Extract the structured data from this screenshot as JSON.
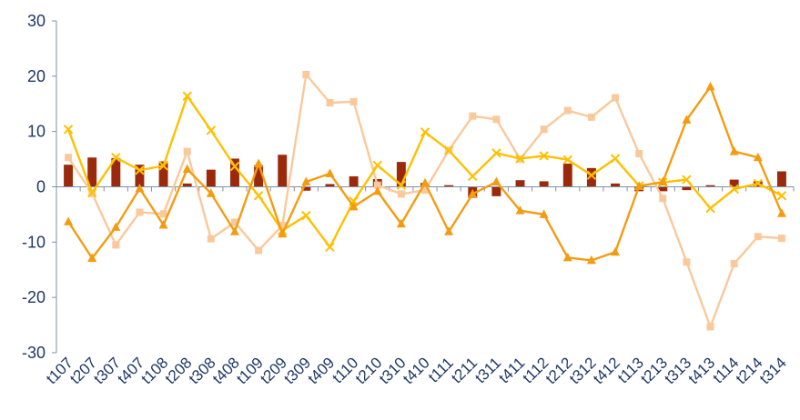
{
  "chart_data": {
    "type": "bar+line",
    "categories": [
      "t107",
      "t207",
      "t307",
      "t407",
      "t108",
      "t208",
      "t308",
      "t408",
      "t109",
      "t209",
      "t309",
      "t409",
      "t110",
      "t210",
      "t310",
      "t410",
      "t111",
      "t211",
      "t311",
      "t411",
      "t112",
      "t212",
      "t312",
      "t412",
      "t113",
      "t213",
      "t313",
      "t413",
      "t114",
      "t214",
      "t314"
    ],
    "ylim": [
      -30,
      30
    ],
    "yticks": [
      -30,
      -20,
      -10,
      0,
      10,
      20,
      30
    ],
    "grid": false,
    "legend": "none",
    "series": [
      {
        "type": "bar",
        "color": "#9b2a0c",
        "values": [
          4.0,
          5.3,
          5.2,
          4.0,
          4.6,
          0.6,
          3.1,
          5.1,
          3.9,
          5.8,
          -0.7,
          0.5,
          1.9,
          1.4,
          4.5,
          0.7,
          0.3,
          -2.0,
          -1.7,
          1.2,
          1.0,
          4.2,
          3.4,
          0.6,
          -0.8,
          -0.8,
          -0.6,
          0.3,
          1.3,
          1.0,
          2.8
        ]
      },
      {
        "type": "line",
        "marker": "square",
        "color": "#f9c99b",
        "values": [
          5.3,
          -1.2,
          -10.5,
          -4.6,
          -4.9,
          6.4,
          -9.4,
          -6.4,
          -11.5,
          -7.0,
          20.3,
          15.2,
          15.4,
          0.3,
          -1.3,
          -0.6,
          6.6,
          12.8,
          12.2,
          5.0,
          10.4,
          13.8,
          12.6,
          16.1,
          6.0,
          -2.1,
          -13.6,
          -25.3,
          -13.9,
          -9.0,
          -9.3
        ]
      },
      {
        "type": "line",
        "marker": "x",
        "color": "#ffc000",
        "values": [
          10.4,
          -1.1,
          5.3,
          3.0,
          3.8,
          16.4,
          10.2,
          3.7,
          -1.6,
          -7.9,
          -5.2,
          -10.9,
          -2.6,
          3.9,
          0.3,
          9.9,
          6.6,
          1.9,
          6.1,
          5.1,
          5.6,
          4.9,
          2.1,
          5.1,
          0.2,
          0.8,
          1.3,
          -3.9,
          -0.4,
          0.6,
          -1.6
        ]
      },
      {
        "type": "line",
        "marker": "triangle",
        "color": "#f39c12",
        "values": [
          -6.3,
          -12.9,
          -7.3,
          -0.3,
          -6.9,
          3.2,
          -1.2,
          -8.1,
          4.2,
          -8.5,
          0.9,
          2.4,
          -3.6,
          -0.8,
          -6.7,
          0.7,
          -8.1,
          -1.3,
          0.9,
          -4.3,
          -5.0,
          -12.8,
          -13.3,
          -11.8,
          0.1,
          0.9,
          12.1,
          18.1,
          6.4,
          5.3,
          -4.8
        ]
      }
    ]
  }
}
